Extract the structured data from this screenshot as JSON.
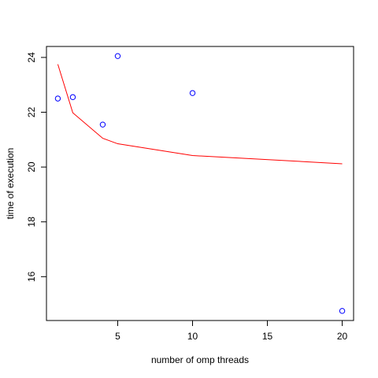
{
  "chart_data": {
    "type": "scatter",
    "title": "",
    "xlabel": "number of omp threads",
    "ylabel": "time of execution",
    "xlim": [
      0.24,
      20.76
    ],
    "ylim": [
      14.4,
      24.4
    ],
    "xticks": [
      5,
      10,
      15,
      20
    ],
    "yticks": [
      16,
      18,
      20,
      22,
      24
    ],
    "grid": false,
    "legend": "none",
    "points": {
      "color": "#0000ff",
      "x": [
        1,
        2,
        4,
        5,
        10,
        20
      ],
      "y": [
        22.5,
        22.55,
        21.55,
        24.05,
        22.7,
        14.75
      ]
    },
    "line": {
      "color": "#ff0000",
      "x": [
        1,
        2,
        4,
        5,
        10,
        20
      ],
      "y": [
        23.75,
        21.98,
        21.05,
        20.85,
        20.42,
        20.12
      ]
    }
  }
}
